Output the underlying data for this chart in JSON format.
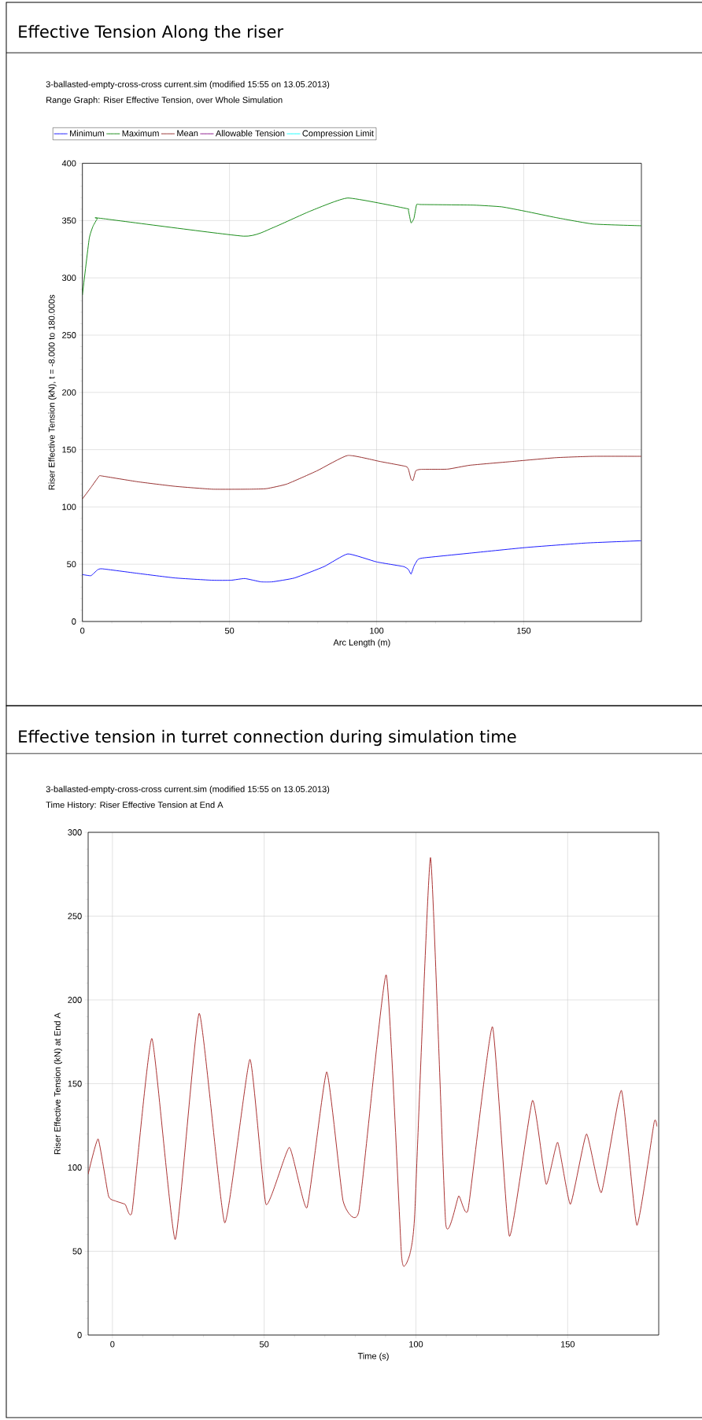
{
  "chart_data": [
    {
      "type": "line",
      "title": "Effective Tension Along the riser",
      "subtitle": "3-ballasted-empty-cross-cross current.sim (modified 15:55 on 13.05.2013)",
      "annotations": [
        "Range Graph: Riser Effective Tension, over Whole Simulation"
      ],
      "xlabel": "Arc Length (m)",
      "ylabel": "Riser Effective Tension (kN), t = -8.000 to 180.000s",
      "xlim": [
        0,
        190
      ],
      "ylim": [
        0,
        400
      ],
      "xticks": [
        0,
        50,
        100,
        150
      ],
      "yticks": [
        0,
        50,
        100,
        150,
        200,
        250,
        300,
        350,
        400
      ],
      "grid": true,
      "legend": "top",
      "series": [
        {
          "name": "Minimum",
          "color": "#0000ff",
          "x": [
            0,
            2.9,
            5.1,
            6.7,
            18.8,
            31.5,
            44.2,
            50.5,
            55.2,
            60.7,
            64.5,
            72.1,
            82.2,
            90.2,
            100,
            109.1,
            110.8,
            111.7,
            112.7,
            114,
            115.9,
            133,
            150.8,
            171.1,
            189.9
          ],
          "values": [
            41,
            40,
            45,
            46,
            42,
            38,
            36,
            36,
            37.5,
            34.6,
            34.6,
            38,
            48,
            59,
            52,
            48,
            45.4,
            41.4,
            48.3,
            54,
            55.5,
            60,
            64.6,
            68.5,
            70.5
          ]
        },
        {
          "name": "Maximum",
          "color": "#008000",
          "x": [
            0,
            2.3,
            3.6,
            5.1,
            6.1,
            54.8,
            64.5,
            77.2,
            90.2,
            110.2,
            110.8,
            111.7,
            112.7,
            113.6,
            115.2,
            133,
            142.5,
            150.8,
            161,
            173.6,
            189.9
          ],
          "values": [
            285,
            334,
            345,
            351.7,
            352,
            336.4,
            343.5,
            358,
            369.7,
            360.5,
            359,
            348,
            352,
            364,
            364,
            363.5,
            362,
            358,
            352.6,
            347,
            345.5
          ]
        },
        {
          "name": "Mean",
          "color": "#8b1a1a",
          "x": [
            0,
            2.9,
            5.7,
            6.7,
            18.8,
            31.5,
            44.2,
            56.9,
            62.6,
            69.5,
            79.7,
            90.2,
            101.3,
            109.9,
            110.8,
            111.7,
            112.4,
            113.3,
            115,
            124.1,
            131.7,
            145.7,
            160.9,
            173.6,
            189.9
          ],
          "values": [
            107,
            117,
            127,
            127,
            122,
            118,
            115.5,
            115.5,
            116,
            120,
            131.5,
            145,
            139.6,
            135.4,
            133,
            124.3,
            123.3,
            131.5,
            132.8,
            133,
            136.4,
            139.6,
            143,
            144.2,
            144.2
          ]
        },
        {
          "name": "Allowable Tension",
          "color": "#800080"
        },
        {
          "name": "Compression Limit",
          "color": "#00ffff"
        }
      ]
    },
    {
      "type": "line",
      "title": "Effective tension in turret connection during simulation time",
      "subtitle": "3-ballasted-empty-cross-cross current.sim (modified 15:55 on 13.05.2013)",
      "annotations": [
        "Time History: Riser Effective Tension at End A"
      ],
      "xlabel": "Time (s)",
      "ylabel": "Riser Effective Tension (kN) at End A",
      "xlim": [
        -8,
        180
      ],
      "ylim": [
        0,
        300
      ],
      "xticks": [
        0,
        50,
        100,
        150
      ],
      "yticks": [
        0,
        50,
        100,
        150,
        200,
        250,
        300
      ],
      "grid": true,
      "series": [
        {
          "color": "#a01c1c",
          "x": [
            -8,
            -4.7,
            -1.3,
            1,
            4.2,
            6.5,
            13,
            20.7,
            28.6,
            37,
            45.3,
            50.6,
            58.3,
            64.1,
            70.6,
            76,
            81.2,
            90.2,
            95.2,
            96.6,
            98.1,
            99.6,
            104.8,
            109.8,
            114.1,
            117.2,
            125.2,
            130.8,
            138.4,
            142.9,
            146.7,
            150.9,
            156.2,
            161.1,
            167.7,
            172.8,
            178.5,
            179.4
          ],
          "values": [
            96,
            117,
            83,
            80,
            78,
            74,
            177,
            57,
            192,
            67,
            164.5,
            78,
            112,
            76,
            157,
            80,
            74,
            215,
            49,
            42,
            49,
            72,
            285,
            67,
            83,
            75,
            184,
            59,
            140,
            90,
            115,
            78,
            120,
            85,
            146,
            65.5,
            127,
            124.5
          ]
        }
      ]
    }
  ]
}
